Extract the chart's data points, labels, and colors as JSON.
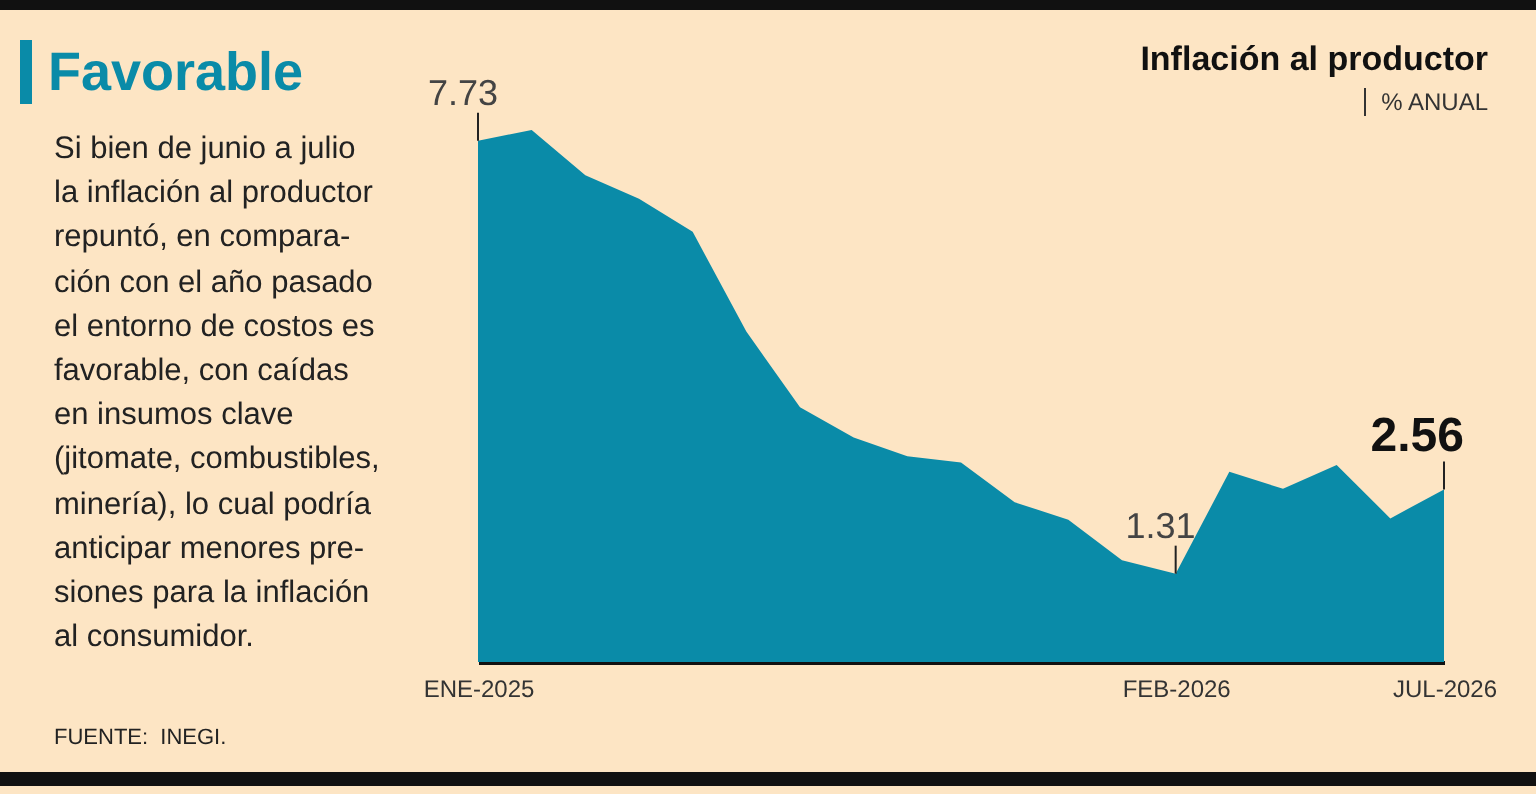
{
  "chart_data": {
    "type": "area",
    "title": "Favorable",
    "subtitle": "Inflación al productor",
    "ylabel": "% ANUAL",
    "annotations": [
      "Si bien de junio a julio\nla inflación al productor\nrepuntó, en compara-\nción con el año pasado\nel  entorno de costos es\nfavorable, con caídas\nen insumos clave\n(jitomate, combustibles,\nminería), lo cual podría\nanticipar menores pre-\nsiones para la inflación\nal consumidor.",
      "FUENTE:  INEGI."
    ],
    "categories": [
      "ENE-2025",
      null,
      null,
      null,
      null,
      null,
      null,
      null,
      null,
      null,
      null,
      null,
      null,
      "FEB-2026",
      null,
      null,
      null,
      null,
      "JUL-2026"
    ],
    "values": [
      7.73,
      7.89,
      7.22,
      6.87,
      6.38,
      4.9,
      3.78,
      3.33,
      3.05,
      2.96,
      2.37,
      2.11,
      1.51,
      1.31,
      2.82,
      2.57,
      2.92,
      2.13,
      2.56
    ],
    "value_labels": [
      "7.73",
      null,
      null,
      null,
      null,
      null,
      null,
      null,
      null,
      null,
      null,
      null,
      null,
      "1.31",
      null,
      null,
      null,
      null,
      "2.56"
    ],
    "color": "#0a8ba8",
    "tick_labels": "x"
  }
}
